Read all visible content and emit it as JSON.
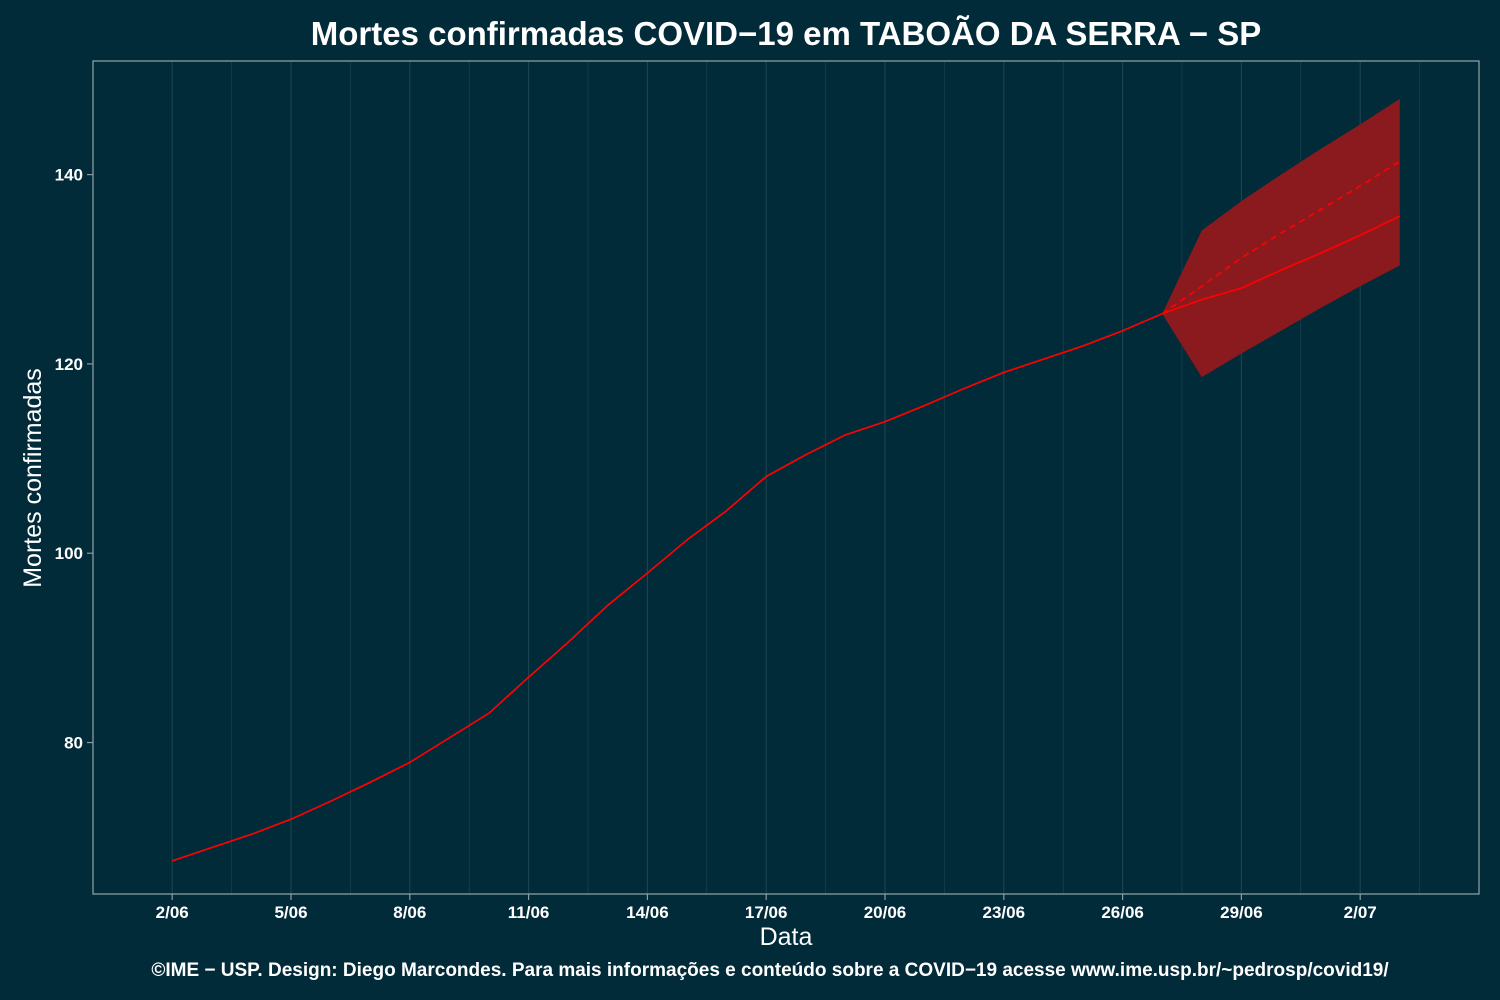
{
  "chart_data": {
    "type": "line",
    "title": "Mortes confirmadas COVID−19 em TABOÃO DA SERRA − SP",
    "xlabel": "Data",
    "ylabel": "Mortes confirmadas",
    "caption": "©IME − USP. Design: Diego Marcondes. Para mais informações e conteúdo sobre a COVID−19 acesse www.ime.usp.br/~pedrosp/covid19/",
    "x": [
      "2020-06-02",
      "2020-06-03",
      "2020-06-04",
      "2020-06-05",
      "2020-06-06",
      "2020-06-07",
      "2020-06-08",
      "2020-06-09",
      "2020-06-10",
      "2020-06-11",
      "2020-06-12",
      "2020-06-13",
      "2020-06-14",
      "2020-06-15",
      "2020-06-16",
      "2020-06-17",
      "2020-06-18",
      "2020-06-19",
      "2020-06-20",
      "2020-06-21",
      "2020-06-22",
      "2020-06-23",
      "2020-06-24",
      "2020-06-25",
      "2020-06-26",
      "2020-06-27"
    ],
    "series": [
      {
        "values": [
          67.5,
          68.9,
          70.3,
          71.9,
          73.8,
          75.8,
          77.9,
          80.5,
          83.1,
          86.9,
          90.6,
          94.5,
          97.9,
          101.4,
          104.5,
          108.1,
          110.4,
          112.5,
          113.9,
          115.6,
          117.4,
          119.1,
          120.5,
          121.9,
          123.5,
          125.3
        ]
      }
    ],
    "forecast": {
      "x": [
        "2020-06-27",
        "2020-06-28",
        "2020-06-29",
        "2020-06-30",
        "2020-07-01",
        "2020-07-02",
        "2020-07-03"
      ],
      "median": [
        125.3,
        126.8,
        128.0,
        129.9,
        131.7,
        133.6,
        135.6
      ],
      "mean": [
        125.3,
        128.2,
        131.2,
        133.8,
        136.3,
        138.8,
        141.4
      ],
      "lower": [
        125.3,
        118.6,
        121.1,
        123.5,
        125.9,
        128.2,
        130.4
      ],
      "upper": [
        125.3,
        134.1,
        137.2,
        140.0,
        142.7,
        145.3,
        148.0
      ]
    },
    "x_ticks": [
      {
        "date": "2020-06-02",
        "label": "2/06"
      },
      {
        "date": "2020-06-05",
        "label": "5/06"
      },
      {
        "date": "2020-06-08",
        "label": "8/06"
      },
      {
        "date": "2020-06-11",
        "label": "11/06"
      },
      {
        "date": "2020-06-14",
        "label": "14/06"
      },
      {
        "date": "2020-06-17",
        "label": "17/06"
      },
      {
        "date": "2020-06-20",
        "label": "20/06"
      },
      {
        "date": "2020-06-23",
        "label": "23/06"
      },
      {
        "date": "2020-06-26",
        "label": "26/06"
      },
      {
        "date": "2020-06-29",
        "label": "29/06"
      },
      {
        "date": "2020-07-02",
        "label": "2/07"
      }
    ],
    "y_ticks": [
      80,
      100,
      120,
      140
    ],
    "xlim": [
      "2020-05-31",
      "2020-07-05"
    ],
    "ylim": [
      64,
      152
    ],
    "grid": true,
    "colors": {
      "background": "#022b3a",
      "line": "#ff0000",
      "band": "#8b1a1e",
      "grid": "#1d4450",
      "axis": "#8a9ca2",
      "text": "#ffffff"
    }
  }
}
